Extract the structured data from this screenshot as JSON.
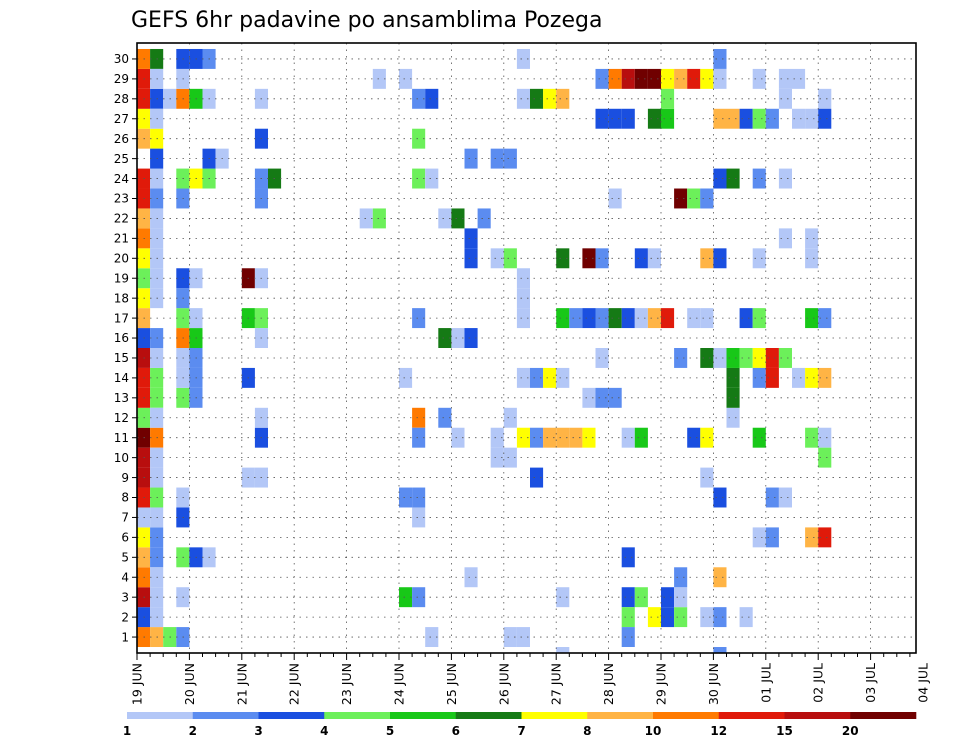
{
  "chart_data": {
    "type": "heatmap",
    "title": "GEFS 6hr padavine po ansamblima Pozega",
    "y_categories": [
      "1",
      "2",
      "3",
      "4",
      "5",
      "6",
      "7",
      "8",
      "9",
      "10",
      "11",
      "12",
      "13",
      "14",
      "15",
      "16",
      "17",
      "18",
      "19",
      "20",
      "21",
      "22",
      "23",
      "24",
      "25",
      "26",
      "27",
      "28",
      "29",
      "30"
    ],
    "x_tick_labels": [
      "19 JUN",
      "20 JUN",
      "21 JUN",
      "22 JUN",
      "23 JUN",
      "24 JUN",
      "25 JUN",
      "26 JUN",
      "27 JUN",
      "28 JUN",
      "29 JUN",
      "30 JUN",
      "01 JUL",
      "02 JUL",
      "03 JUL",
      "04 JUL"
    ],
    "x_step": "6 hr",
    "grid": true,
    "legend": {
      "placement": "bottom",
      "labels": [
        "1",
        "2",
        "3",
        "4",
        "5",
        "6",
        "7",
        "8",
        "10",
        "12",
        "15",
        "20"
      ],
      "colors": [
        "#b3c7f7",
        "#5b8cf0",
        "#1a4fe0",
        "#6cf05a",
        "#18c818",
        "#157a15",
        "#ffff00",
        "#ffb445",
        "#ff7a00",
        "#e01a0a",
        "#b80e0e",
        "#700000"
      ]
    },
    "cells": [
      [
        0,
        1,
        "#b3c7f7"
      ],
      [
        1,
        1,
        "#ff7a00"
      ],
      [
        2,
        1,
        "#ffb445"
      ],
      [
        3,
        1,
        "#6cf05a"
      ],
      [
        0,
        2,
        "#6cf05a"
      ],
      [
        1,
        2,
        "#1a4fe0"
      ],
      [
        0,
        3,
        "#ff7a00"
      ],
      [
        1,
        3,
        "#b80e0e"
      ],
      [
        2,
        3,
        "#b3c7f7"
      ],
      [
        0,
        4,
        "#ffb445"
      ],
      [
        1,
        4,
        "#ff7a00"
      ],
      [
        -1,
        5,
        "#b3c7f7"
      ],
      [
        0,
        5,
        "#18c818"
      ],
      [
        1,
        5,
        "#ffb445"
      ],
      [
        2,
        5,
        "#5b8cf0"
      ],
      [
        0,
        6,
        "#157a15"
      ],
      [
        1,
        6,
        "#ffff00"
      ],
      [
        2,
        6,
        "#5b8cf0"
      ],
      [
        0,
        7,
        "#ff7a00"
      ],
      [
        1,
        7,
        "#b3c7f7"
      ],
      [
        0,
        8,
        "#ffb445"
      ],
      [
        1,
        8,
        "#e01a0a"
      ],
      [
        2,
        8,
        "#6cf05a"
      ],
      [
        0,
        9,
        "#e01a0a"
      ],
      [
        1,
        9,
        "#b80e0e"
      ],
      [
        -1,
        10,
        "#b3c7f7"
      ],
      [
        0,
        10,
        "#e01a0a"
      ],
      [
        1,
        10,
        "#b80e0e"
      ],
      [
        0,
        11,
        "#e01a0a"
      ],
      [
        1,
        11,
        "#700000"
      ],
      [
        2,
        11,
        "#ff7a00"
      ],
      [
        0,
        12,
        "#157a15"
      ],
      [
        1,
        12,
        "#6cf05a"
      ],
      [
        0,
        13,
        "#b80e0e"
      ],
      [
        1,
        13,
        "#e01a0a"
      ],
      [
        2,
        13,
        "#6cf05a"
      ],
      [
        0,
        14,
        "#b80e0e"
      ],
      [
        1,
        14,
        "#e01a0a"
      ],
      [
        0,
        15,
        "#e01a0a"
      ],
      [
        1,
        15,
        "#b80e0e"
      ],
      [
        0,
        16,
        "#1a4fe0"
      ],
      [
        1,
        16,
        "#1a4fe0"
      ],
      [
        2,
        16,
        "#5b8cf0"
      ],
      [
        0,
        17,
        "#ffb445"
      ],
      [
        1,
        17,
        "#ffb445"
      ],
      [
        0,
        18,
        "#18c818"
      ],
      [
        1,
        18,
        "#ffff00"
      ],
      [
        0,
        19,
        "#6cf05a"
      ],
      [
        1,
        19,
        "#6cf05a"
      ],
      [
        2,
        19,
        "#b3c7f7"
      ],
      [
        0,
        20,
        "#ff7a00"
      ],
      [
        1,
        20,
        "#ffff00"
      ],
      [
        0,
        21,
        "#b80e0e"
      ],
      [
        1,
        21,
        "#ff7a00"
      ],
      [
        0,
        22,
        "#ff7a00"
      ],
      [
        1,
        22,
        "#ffb445"
      ],
      [
        0,
        23,
        "#ff7a00"
      ],
      [
        1,
        23,
        "#e01a0a"
      ],
      [
        2,
        23,
        "#5b8cf0"
      ],
      [
        -1,
        24,
        "#b3c7f7"
      ],
      [
        0,
        24,
        "#e01a0a"
      ],
      [
        1,
        24,
        "#e01a0a"
      ],
      [
        0,
        25,
        "#5b8cf0"
      ],
      [
        0,
        26,
        "#6cf05a"
      ],
      [
        1,
        26,
        "#ffb445"
      ],
      [
        2,
        26,
        "#ffff00"
      ],
      [
        0,
        27,
        "#ffb445"
      ],
      [
        1,
        27,
        "#ffff00"
      ],
      [
        0,
        28,
        "#157a15"
      ],
      [
        1,
        28,
        "#e01a0a"
      ],
      [
        2,
        28,
        "#1a4fe0"
      ],
      [
        0,
        29,
        "#ff7a00"
      ],
      [
        1,
        29,
        "#e01a0a"
      ],
      [
        0,
        30,
        "#18c818"
      ],
      [
        1,
        30,
        "#ff7a00"
      ],
      [
        2,
        30,
        "#157a15"
      ],
      [
        2,
        2,
        "#b3c7f7"
      ],
      [
        2,
        4,
        "#b3c7f7"
      ],
      [
        2,
        7,
        "#b3c7f7"
      ],
      [
        2,
        9,
        "#b3c7f7"
      ],
      [
        2,
        10,
        "#b3c7f7"
      ],
      [
        2,
        12,
        "#b3c7f7"
      ],
      [
        2,
        14,
        "#6cf05a"
      ],
      [
        2,
        15,
        "#b3c7f7"
      ],
      [
        2,
        18,
        "#b3c7f7"
      ],
      [
        2,
        20,
        "#b3c7f7"
      ],
      [
        2,
        21,
        "#b3c7f7"
      ],
      [
        2,
        22,
        "#b3c7f7"
      ],
      [
        2,
        24,
        "#b3c7f7"
      ],
      [
        2,
        25,
        "#1a4fe0"
      ],
      [
        2,
        27,
        "#b3c7f7"
      ],
      [
        2,
        29,
        "#b3c7f7"
      ],
      [
        3,
        28,
        "#b3c7f7"
      ],
      [
        4,
        28,
        "#ff7a00"
      ],
      [
        5,
        28,
        "#18c818"
      ],
      [
        6,
        28,
        "#b3c7f7"
      ],
      [
        4,
        1,
        "#5b8cf0"
      ],
      [
        4,
        3,
        "#b3c7f7"
      ],
      [
        4,
        5,
        "#6cf05a"
      ],
      [
        5,
        5,
        "#1a4fe0"
      ],
      [
        6,
        5,
        "#b3c7f7"
      ],
      [
        4,
        7,
        "#1a4fe0"
      ],
      [
        4,
        8,
        "#b3c7f7"
      ],
      [
        4,
        13,
        "#6cf05a"
      ],
      [
        5,
        13,
        "#5b8cf0"
      ],
      [
        4,
        14,
        "#b3c7f7"
      ],
      [
        5,
        14,
        "#5b8cf0"
      ],
      [
        4,
        15,
        "#b3c7f7"
      ],
      [
        5,
        15,
        "#5b8cf0"
      ],
      [
        4,
        16,
        "#ff7a00"
      ],
      [
        5,
        16,
        "#18c818"
      ],
      [
        4,
        17,
        "#6cf05a"
      ],
      [
        5,
        17,
        "#b3c7f7"
      ],
      [
        4,
        18,
        "#5b8cf0"
      ],
      [
        4,
        19,
        "#1a4fe0"
      ],
      [
        5,
        19,
        "#b3c7f7"
      ],
      [
        4,
        23,
        "#5b8cf0"
      ],
      [
        4,
        24,
        "#6cf05a"
      ],
      [
        5,
        24,
        "#ffff00"
      ],
      [
        6,
        24,
        "#6cf05a"
      ],
      [
        6,
        25,
        "#1a4fe0"
      ],
      [
        7,
        25,
        "#b3c7f7"
      ],
      [
        4,
        29,
        "#b3c7f7"
      ],
      [
        4,
        30,
        "#1a4fe0"
      ],
      [
        5,
        30,
        "#1a4fe0"
      ],
      [
        6,
        30,
        "#5b8cf0"
      ],
      [
        9,
        19,
        "#700000"
      ],
      [
        10,
        19,
        "#b3c7f7"
      ],
      [
        9,
        17,
        "#18c818"
      ],
      [
        10,
        17,
        "#6cf05a"
      ],
      [
        9,
        14,
        "#1a4fe0"
      ],
      [
        10,
        11,
        "#1a4fe0"
      ],
      [
        10,
        12,
        "#b3c7f7"
      ],
      [
        9,
        9,
        "#b3c7f7"
      ],
      [
        10,
        9,
        "#b3c7f7"
      ],
      [
        10,
        16,
        "#b3c7f7"
      ],
      [
        10,
        24,
        "#5b8cf0"
      ],
      [
        11,
        24,
        "#157a15"
      ],
      [
        10,
        23,
        "#5b8cf0"
      ],
      [
        10,
        26,
        "#1a4fe0"
      ],
      [
        10,
        28,
        "#b3c7f7"
      ],
      [
        18,
        22,
        "#b3c7f7"
      ],
      [
        19,
        22,
        "#6cf05a"
      ],
      [
        19,
        29,
        "#b3c7f7"
      ],
      [
        21,
        29,
        "#b3c7f7"
      ],
      [
        21,
        3,
        "#18c818"
      ],
      [
        22,
        3,
        "#5b8cf0"
      ],
      [
        21,
        8,
        "#5b8cf0"
      ],
      [
        22,
        8,
        "#5b8cf0"
      ],
      [
        22,
        7,
        "#b3c7f7"
      ],
      [
        21,
        14,
        "#b3c7f7"
      ],
      [
        22,
        12,
        "#ff7a00"
      ],
      [
        22,
        11,
        "#5b8cf0"
      ],
      [
        22,
        17,
        "#5b8cf0"
      ],
      [
        22,
        24,
        "#6cf05a"
      ],
      [
        23,
        24,
        "#b3c7f7"
      ],
      [
        22,
        26,
        "#6cf05a"
      ],
      [
        22,
        28,
        "#5b8cf0"
      ],
      [
        23,
        28,
        "#1a4fe0"
      ],
      [
        23,
        1,
        "#b3c7f7"
      ],
      [
        24,
        12,
        "#5b8cf0"
      ],
      [
        24,
        22,
        "#b3c7f7"
      ],
      [
        25,
        22,
        "#157a15"
      ],
      [
        27,
        22,
        "#5b8cf0"
      ],
      [
        25,
        11,
        "#b3c7f7"
      ],
      [
        24,
        16,
        "#157a15"
      ],
      [
        25,
        16,
        "#b3c7f7"
      ],
      [
        26,
        16,
        "#1a4fe0"
      ],
      [
        26,
        20,
        "#1a4fe0"
      ],
      [
        26,
        21,
        "#1a4fe0"
      ],
      [
        26,
        25,
        "#5b8cf0"
      ],
      [
        26,
        4,
        "#b3c7f7"
      ],
      [
        28,
        25,
        "#5b8cf0"
      ],
      [
        29,
        25,
        "#5b8cf0"
      ],
      [
        28,
        20,
        "#b3c7f7"
      ],
      [
        29,
        20,
        "#6cf05a"
      ],
      [
        28,
        10,
        "#b3c7f7"
      ],
      [
        29,
        10,
        "#b3c7f7"
      ],
      [
        28,
        11,
        "#b3c7f7"
      ],
      [
        29,
        12,
        "#b3c7f7"
      ],
      [
        29,
        1,
        "#b3c7f7"
      ],
      [
        30,
        1,
        "#b3c7f7"
      ],
      [
        30,
        30,
        "#b3c7f7"
      ],
      [
        30,
        19,
        "#b3c7f7"
      ],
      [
        30,
        18,
        "#b3c7f7"
      ],
      [
        30,
        17,
        "#b3c7f7"
      ],
      [
        30,
        14,
        "#b3c7f7"
      ],
      [
        31,
        14,
        "#5b8cf0"
      ],
      [
        32,
        14,
        "#ffff00"
      ],
      [
        33,
        14,
        "#b3c7f7"
      ],
      [
        31,
        9,
        "#1a4fe0"
      ],
      [
        30,
        11,
        "#ffff00"
      ],
      [
        31,
        11,
        "#5b8cf0"
      ],
      [
        32,
        11,
        "#ffb445"
      ],
      [
        33,
        11,
        "#ffb445"
      ],
      [
        34,
        11,
        "#ffb445"
      ],
      [
        35,
        11,
        "#ffff00"
      ],
      [
        30,
        28,
        "#b3c7f7"
      ],
      [
        31,
        28,
        "#157a15"
      ],
      [
        32,
        28,
        "#ffff00"
      ],
      [
        33,
        28,
        "#ffb445"
      ],
      [
        33,
        17,
        "#18c818"
      ],
      [
        34,
        17,
        "#5b8cf0"
      ],
      [
        35,
        17,
        "#1a4fe0"
      ],
      [
        36,
        17,
        "#5b8cf0"
      ],
      [
        37,
        17,
        "#157a15"
      ],
      [
        38,
        17,
        "#1a4fe0"
      ],
      [
        39,
        17,
        "#b3c7f7"
      ],
      [
        40,
        17,
        "#ffb445"
      ],
      [
        41,
        17,
        "#e01a0a"
      ],
      [
        33,
        20,
        "#157a15"
      ],
      [
        35,
        20,
        "#700000"
      ],
      [
        36,
        20,
        "#5b8cf0"
      ],
      [
        33,
        3,
        "#b3c7f7"
      ],
      [
        33,
        0,
        "#b3c7f7"
      ],
      [
        36,
        29,
        "#5b8cf0"
      ],
      [
        37,
        29,
        "#ff7a00"
      ],
      [
        38,
        29,
        "#b80e0e"
      ],
      [
        39,
        29,
        "#700000"
      ],
      [
        40,
        29,
        "#700000"
      ],
      [
        41,
        29,
        "#ffff00"
      ],
      [
        42,
        29,
        "#ffb445"
      ],
      [
        43,
        29,
        "#e01a0a"
      ],
      [
        44,
        29,
        "#ffff00"
      ],
      [
        45,
        29,
        "#b3c7f7"
      ],
      [
        36,
        27,
        "#1a4fe0"
      ],
      [
        37,
        27,
        "#1a4fe0"
      ],
      [
        38,
        27,
        "#1a4fe0"
      ],
      [
        40,
        27,
        "#157a15"
      ],
      [
        41,
        27,
        "#18c818"
      ],
      [
        41,
        28,
        "#6cf05a"
      ],
      [
        36,
        15,
        "#b3c7f7"
      ],
      [
        35,
        13,
        "#b3c7f7"
      ],
      [
        36,
        13,
        "#5b8cf0"
      ],
      [
        37,
        13,
        "#5b8cf0"
      ],
      [
        38,
        11,
        "#b3c7f7"
      ],
      [
        39,
        11,
        "#18c818"
      ],
      [
        37,
        23,
        "#b3c7f7"
      ],
      [
        38,
        3,
        "#1a4fe0"
      ],
      [
        39,
        3,
        "#6cf05a"
      ],
      [
        38,
        2,
        "#6cf05a"
      ],
      [
        40,
        2,
        "#ffff00"
      ],
      [
        41,
        2,
        "#1a4fe0"
      ],
      [
        42,
        2,
        "#6cf05a"
      ],
      [
        38,
        1,
        "#5b8cf0"
      ],
      [
        38,
        5,
        "#1a4fe0"
      ],
      [
        39,
        20,
        "#1a4fe0"
      ],
      [
        40,
        20,
        "#b3c7f7"
      ],
      [
        41,
        3,
        "#1a4fe0"
      ],
      [
        42,
        3,
        "#b3c7f7"
      ],
      [
        42,
        4,
        "#5b8cf0"
      ],
      [
        42,
        15,
        "#5b8cf0"
      ],
      [
        42,
        23,
        "#700000"
      ],
      [
        43,
        23,
        "#6cf05a"
      ],
      [
        44,
        23,
        "#5b8cf0"
      ],
      [
        43,
        17,
        "#b3c7f7"
      ],
      [
        44,
        17,
        "#b3c7f7"
      ],
      [
        43,
        11,
        "#1a4fe0"
      ],
      [
        44,
        11,
        "#ffff00"
      ],
      [
        44,
        2,
        "#b3c7f7"
      ],
      [
        45,
        2,
        "#5b8cf0"
      ],
      [
        47,
        2,
        "#b3c7f7"
      ],
      [
        44,
        15,
        "#157a15"
      ],
      [
        45,
        15,
        "#b3c7f7"
      ],
      [
        46,
        15,
        "#18c818"
      ],
      [
        45,
        27,
        "#ffb445"
      ],
      [
        46,
        27,
        "#ffb445"
      ],
      [
        47,
        27,
        "#1a4fe0"
      ],
      [
        48,
        27,
        "#6cf05a"
      ],
      [
        49,
        27,
        "#5b8cf0"
      ],
      [
        45,
        30,
        "#5b8cf0"
      ],
      [
        44,
        20,
        "#ffb445"
      ],
      [
        45,
        20,
        "#1a4fe0"
      ],
      [
        45,
        24,
        "#1a4fe0"
      ],
      [
        46,
        24,
        "#157a15"
      ],
      [
        44,
        9,
        "#b3c7f7"
      ],
      [
        45,
        8,
        "#1a4fe0"
      ],
      [
        45,
        0,
        "#5b8cf0"
      ],
      [
        44,
        23,
        "#5b8cf0"
      ],
      [
        45,
        4,
        "#ffb445"
      ],
      [
        46,
        12,
        "#b3c7f7"
      ],
      [
        46,
        14,
        "#157a15"
      ],
      [
        46,
        13,
        "#157a15"
      ],
      [
        47,
        15,
        "#6cf05a"
      ],
      [
        48,
        15,
        "#ffff00"
      ],
      [
        49,
        15,
        "#e01a0a"
      ],
      [
        50,
        15,
        "#6cf05a"
      ],
      [
        48,
        14,
        "#5b8cf0"
      ],
      [
        49,
        14,
        "#e01a0a"
      ],
      [
        51,
        14,
        "#b3c7f7"
      ],
      [
        52,
        14,
        "#ffff00"
      ],
      [
        53,
        14,
        "#ffb445"
      ],
      [
        48,
        11,
        "#18c818"
      ],
      [
        47,
        17,
        "#1a4fe0"
      ],
      [
        48,
        17,
        "#6cf05a"
      ],
      [
        48,
        29,
        "#b3c7f7"
      ],
      [
        50,
        29,
        "#b3c7f7"
      ],
      [
        51,
        29,
        "#b3c7f7"
      ],
      [
        48,
        24,
        "#5b8cf0"
      ],
      [
        50,
        24,
        "#b3c7f7"
      ],
      [
        50,
        28,
        "#b3c7f7"
      ],
      [
        53,
        28,
        "#b3c7f7"
      ],
      [
        48,
        20,
        "#b3c7f7"
      ],
      [
        50,
        21,
        "#b3c7f7"
      ],
      [
        52,
        21,
        "#b3c7f7"
      ],
      [
        52,
        20,
        "#b3c7f7"
      ],
      [
        48,
        6,
        "#b3c7f7"
      ],
      [
        49,
        6,
        "#5b8cf0"
      ],
      [
        52,
        6,
        "#ffb445"
      ],
      [
        53,
        6,
        "#e01a0a"
      ],
      [
        49,
        8,
        "#5b8cf0"
      ],
      [
        50,
        8,
        "#b3c7f7"
      ],
      [
        51,
        27,
        "#b3c7f7"
      ],
      [
        52,
        27,
        "#b3c7f7"
      ],
      [
        53,
        27,
        "#1a4fe0"
      ],
      [
        52,
        17,
        "#18c818"
      ],
      [
        53,
        17,
        "#5b8cf0"
      ],
      [
        52,
        11,
        "#6cf05a"
      ],
      [
        53,
        11,
        "#b3c7f7"
      ],
      [
        53,
        10,
        "#6cf05a"
      ]
    ]
  }
}
